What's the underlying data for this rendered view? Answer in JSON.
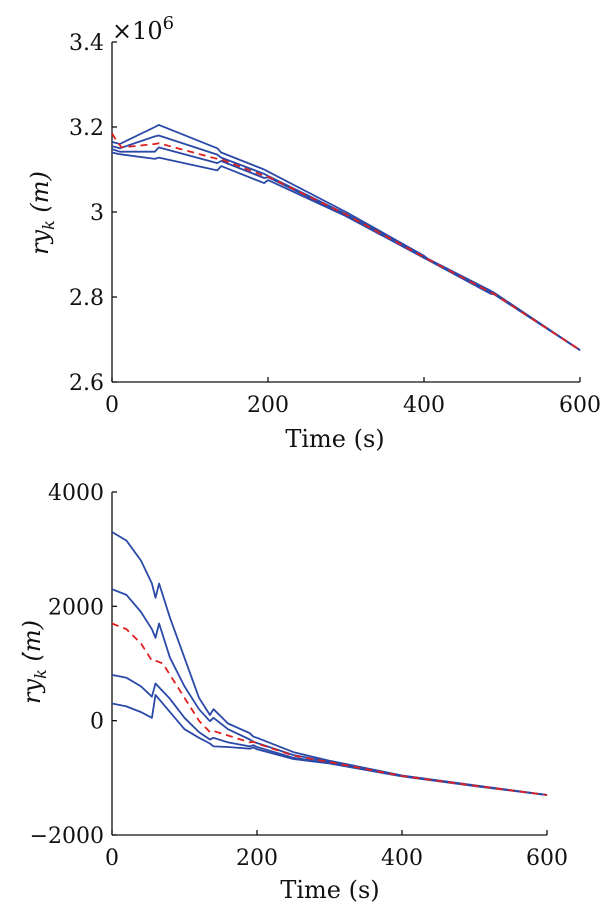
{
  "chart_data": [
    {
      "type": "line",
      "xlabel": "Time (s)",
      "ylabel": {
        "main": "ry",
        "sub": "k",
        "unit": "(m)"
      },
      "y_multiplier": "×10",
      "y_multiplier_exp": "6",
      "xlim": [
        0,
        600
      ],
      "ylim": [
        2.6,
        3.4
      ],
      "xticks": [
        0,
        200,
        400,
        600
      ],
      "xtick_labels": [
        "0",
        "200",
        "400",
        "600"
      ],
      "yticks": [
        2.6,
        2.8,
        3.0,
        3.2,
        3.4
      ],
      "ytick_labels": [
        "2.6",
        "2.8",
        "3",
        "3.2",
        "3.4"
      ],
      "grid": false,
      "colors": {
        "bounds": "#2b4aa8",
        "mean": "#e02020"
      },
      "series": [
        {
          "style": "solid",
          "color": "#2b4aa8",
          "points": [
            [
              0,
              3.165
            ],
            [
              10,
              3.16
            ],
            [
              55,
              3.2
            ],
            [
              60,
              3.205
            ],
            [
              135,
              3.15
            ],
            [
              140,
              3.14
            ],
            [
              195,
              3.1
            ],
            [
              200,
              3.095
            ],
            [
              300,
              3.0
            ],
            [
              400,
              2.897
            ],
            [
              405,
              2.89
            ],
            [
              485,
              2.815
            ],
            [
              490,
              2.81
            ],
            [
              600,
              2.675
            ]
          ]
        },
        {
          "style": "solid",
          "color": "#2b4aa8",
          "points": [
            [
              0,
              3.155
            ],
            [
              10,
              3.15
            ],
            [
              55,
              3.178
            ],
            [
              60,
              3.18
            ],
            [
              135,
              3.135
            ],
            [
              140,
              3.128
            ],
            [
              195,
              3.09
            ],
            [
              200,
              3.085
            ],
            [
              300,
              2.995
            ],
            [
              400,
              2.895
            ],
            [
              405,
              2.889
            ],
            [
              485,
              2.812
            ],
            [
              490,
              2.808
            ],
            [
              600,
              2.675
            ]
          ]
        },
        {
          "style": "solid",
          "color": "#2b4aa8",
          "points": [
            [
              0,
              3.148
            ],
            [
              10,
              3.142
            ],
            [
              55,
              3.142
            ],
            [
              60,
              3.152
            ],
            [
              135,
              3.115
            ],
            [
              140,
              3.12
            ],
            [
              195,
              3.08
            ],
            [
              200,
              3.082
            ],
            [
              300,
              2.992
            ],
            [
              400,
              2.893
            ],
            [
              405,
              2.888
            ],
            [
              485,
              2.81
            ],
            [
              490,
              2.807
            ],
            [
              600,
              2.675
            ]
          ]
        },
        {
          "style": "solid",
          "color": "#2b4aa8",
          "points": [
            [
              0,
              3.14
            ],
            [
              10,
              3.136
            ],
            [
              55,
              3.125
            ],
            [
              60,
              3.128
            ],
            [
              135,
              3.098
            ],
            [
              140,
              3.108
            ],
            [
              195,
              3.068
            ],
            [
              200,
              3.075
            ],
            [
              300,
              2.99
            ],
            [
              400,
              2.892
            ],
            [
              405,
              2.887
            ],
            [
              485,
              2.808
            ],
            [
              490,
              2.806
            ],
            [
              600,
              2.675
            ]
          ]
        },
        {
          "style": "dashed",
          "color": "#e02020",
          "points": [
            [
              0,
              3.185
            ],
            [
              5,
              3.17
            ],
            [
              12,
              3.152
            ],
            [
              55,
              3.16
            ],
            [
              60,
              3.162
            ],
            [
              135,
              3.125
            ],
            [
              140,
              3.124
            ],
            [
              195,
              3.085
            ],
            [
              200,
              3.083
            ],
            [
              300,
              2.994
            ],
            [
              400,
              2.894
            ],
            [
              405,
              2.889
            ],
            [
              485,
              2.811
            ],
            [
              490,
              2.807
            ],
            [
              600,
              2.675
            ]
          ]
        }
      ]
    },
    {
      "type": "line",
      "xlabel": "Time (s)",
      "ylabel": {
        "main": "r",
        "dotted": "y",
        "sub": "k",
        "unit": "(m)"
      },
      "xlim": [
        0,
        600
      ],
      "ylim": [
        -2000,
        4000
      ],
      "xticks": [
        0,
        200,
        400,
        600
      ],
      "xtick_labels": [
        "0",
        "200",
        "400",
        "600"
      ],
      "yticks": [
        -2000,
        0,
        2000,
        4000
      ],
      "ytick_labels": [
        "−2000",
        "0",
        "2000",
        "4000"
      ],
      "grid": false,
      "colors": {
        "bounds": "#2b4aa8",
        "mean": "#e02020"
      },
      "series": [
        {
          "style": "solid",
          "color": "#2b4aa8",
          "points": [
            [
              0,
              3300
            ],
            [
              20,
              3150
            ],
            [
              40,
              2800
            ],
            [
              55,
              2400
            ],
            [
              60,
              2150
            ],
            [
              65,
              2400
            ],
            [
              80,
              1800
            ],
            [
              100,
              1100
            ],
            [
              120,
              400
            ],
            [
              135,
              100
            ],
            [
              140,
              200
            ],
            [
              160,
              -50
            ],
            [
              190,
              -220
            ],
            [
              195,
              -280
            ],
            [
              200,
              -300
            ],
            [
              250,
              -550
            ],
            [
              300,
              -700
            ],
            [
              400,
              -960
            ],
            [
              500,
              -1130
            ],
            [
              600,
              -1300
            ]
          ]
        },
        {
          "style": "solid",
          "color": "#2b4aa8",
          "points": [
            [
              0,
              2300
            ],
            [
              20,
              2200
            ],
            [
              40,
              1900
            ],
            [
              55,
              1600
            ],
            [
              60,
              1450
            ],
            [
              65,
              1700
            ],
            [
              80,
              1100
            ],
            [
              100,
              600
            ],
            [
              120,
              200
            ],
            [
              135,
              -10
            ],
            [
              140,
              50
            ],
            [
              160,
              -150
            ],
            [
              190,
              -330
            ],
            [
              195,
              -370
            ],
            [
              200,
              -390
            ],
            [
              250,
              -600
            ],
            [
              300,
              -720
            ],
            [
              400,
              -965
            ],
            [
              500,
              -1135
            ],
            [
              600,
              -1300
            ]
          ]
        },
        {
          "style": "solid",
          "color": "#2b4aa8",
          "points": [
            [
              0,
              800
            ],
            [
              20,
              750
            ],
            [
              40,
              600
            ],
            [
              55,
              420
            ],
            [
              60,
              650
            ],
            [
              80,
              380
            ],
            [
              100,
              50
            ],
            [
              120,
              -200
            ],
            [
              135,
              -330
            ],
            [
              140,
              -300
            ],
            [
              160,
              -380
            ],
            [
              190,
              -450
            ],
            [
              195,
              -430
            ],
            [
              200,
              -460
            ],
            [
              250,
              -650
            ],
            [
              300,
              -740
            ],
            [
              400,
              -970
            ],
            [
              500,
              -1140
            ],
            [
              600,
              -1300
            ]
          ]
        },
        {
          "style": "solid",
          "color": "#2b4aa8",
          "points": [
            [
              0,
              300
            ],
            [
              20,
              250
            ],
            [
              40,
              150
            ],
            [
              55,
              50
            ],
            [
              60,
              450
            ],
            [
              80,
              150
            ],
            [
              100,
              -150
            ],
            [
              120,
              -300
            ],
            [
              135,
              -400
            ],
            [
              140,
              -450
            ],
            [
              160,
              -460
            ],
            [
              190,
              -490
            ],
            [
              195,
              -470
            ],
            [
              200,
              -500
            ],
            [
              250,
              -670
            ],
            [
              300,
              -750
            ],
            [
              400,
              -975
            ],
            [
              500,
              -1145
            ],
            [
              600,
              -1300
            ]
          ]
        },
        {
          "style": "dashed",
          "color": "#e02020",
          "points": [
            [
              0,
              1700
            ],
            [
              20,
              1600
            ],
            [
              40,
              1350
            ],
            [
              55,
              1050
            ],
            [
              60,
              1050
            ],
            [
              70,
              1000
            ],
            [
              80,
              800
            ],
            [
              100,
              400
            ],
            [
              120,
              0
            ],
            [
              135,
              -200
            ],
            [
              140,
              -180
            ],
            [
              160,
              -260
            ],
            [
              190,
              -380
            ],
            [
              195,
              -370
            ],
            [
              200,
              -400
            ],
            [
              250,
              -610
            ],
            [
              300,
              -725
            ],
            [
              400,
              -968
            ],
            [
              500,
              -1138
            ],
            [
              600,
              -1300
            ]
          ]
        }
      ]
    }
  ]
}
